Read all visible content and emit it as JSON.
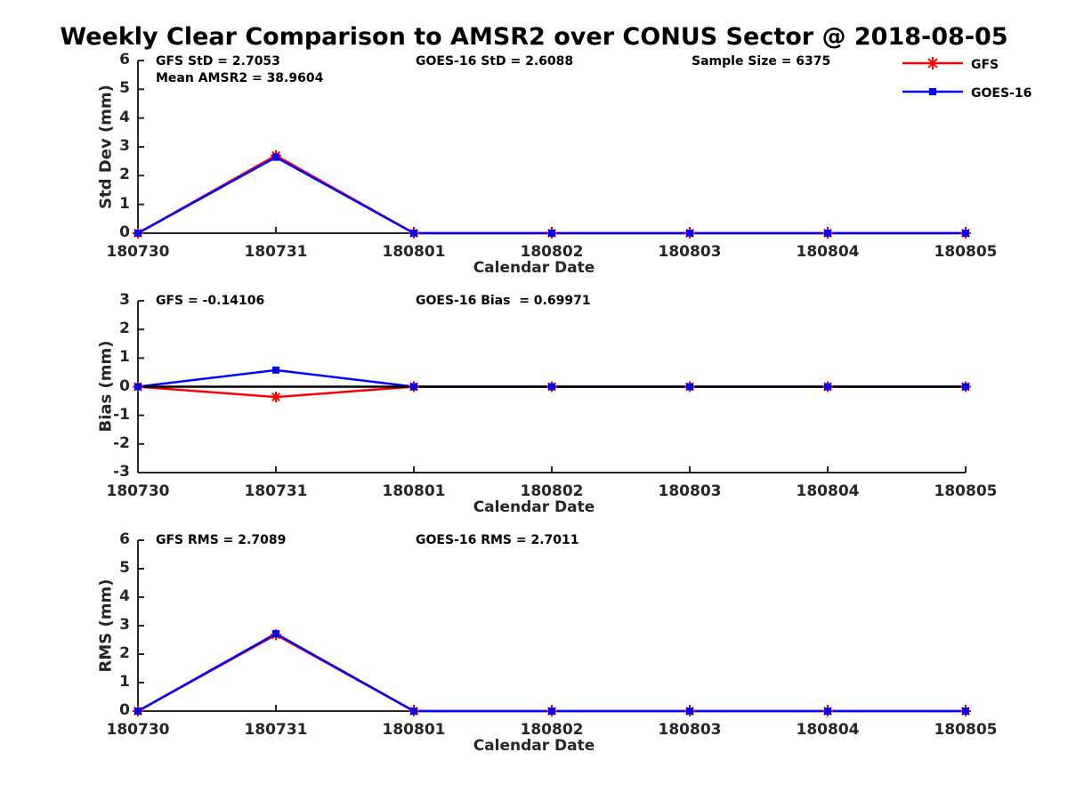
{
  "title": "Weekly Clear Comparison to AMSR2 over CONUS Sector @ 2018-08-05",
  "legend": {
    "items": [
      {
        "label": "GFS",
        "color": "#ff0000",
        "marker": "asterisk"
      },
      {
        "label": "GOES-16",
        "color": "#0000ff",
        "marker": "square"
      }
    ]
  },
  "colors": {
    "axis": "#262626",
    "gfs": "#ff0000",
    "goes16": "#0000ff",
    "zero_line": "#000000"
  },
  "chart_data": [
    {
      "type": "line",
      "ylabel": "Std Dev (mm)",
      "xlabel": "Calendar Date",
      "ylim": [
        0,
        6
      ],
      "yticks": [
        "0",
        "1",
        "2",
        "3",
        "4",
        "5",
        "6"
      ],
      "categories": [
        "180730",
        "180731",
        "180801",
        "180802",
        "180803",
        "180804",
        "180805"
      ],
      "grid": false,
      "legend_position": "top-right",
      "series": [
        {
          "name": "GFS",
          "color": "#ff0000",
          "marker": "asterisk",
          "values": [
            0,
            2.7,
            0,
            0,
            0,
            0,
            0
          ]
        },
        {
          "name": "GOES-16",
          "color": "#0000ff",
          "marker": "square",
          "values": [
            0,
            2.64,
            0,
            0,
            0,
            0,
            0
          ]
        }
      ],
      "annotations": {
        "left1": "GFS StD = 2.7053",
        "left2": "Mean AMSR2 = 38.9604",
        "center": "GOES-16 StD = 2.6088",
        "right": "Sample Size = 6375"
      }
    },
    {
      "type": "line",
      "ylabel": "Bias (mm)",
      "xlabel": "Calendar Date",
      "ylim": [
        -3,
        3
      ],
      "yticks": [
        "-3",
        "-2",
        "-1",
        "0",
        "1",
        "2",
        "3"
      ],
      "categories": [
        "180730",
        "180731",
        "180801",
        "180802",
        "180803",
        "180804",
        "180805"
      ],
      "grid": false,
      "zero_line": true,
      "series": [
        {
          "name": "GFS",
          "color": "#ff0000",
          "marker": "asterisk",
          "values": [
            0,
            -0.36,
            0,
            0,
            0,
            0,
            0
          ]
        },
        {
          "name": "GOES-16",
          "color": "#0000ff",
          "marker": "square",
          "values": [
            0,
            0.58,
            0,
            0,
            0,
            0,
            0
          ]
        }
      ],
      "annotations": {
        "left1": "GFS = -0.14106",
        "center": "GOES-16 Bias  = 0.69971"
      }
    },
    {
      "type": "line",
      "ylabel": "RMS (mm)",
      "xlabel": "Calendar Date",
      "ylim": [
        0,
        6
      ],
      "yticks": [
        "0",
        "1",
        "2",
        "3",
        "4",
        "5",
        "6"
      ],
      "categories": [
        "180730",
        "180731",
        "180801",
        "180802",
        "180803",
        "180804",
        "180805"
      ],
      "grid": false,
      "series": [
        {
          "name": "GFS",
          "color": "#ff0000",
          "marker": "asterisk",
          "values": [
            0,
            2.68,
            0,
            0,
            0,
            0,
            0
          ]
        },
        {
          "name": "GOES-16",
          "color": "#0000ff",
          "marker": "square",
          "values": [
            0,
            2.72,
            0,
            0,
            0,
            0,
            0
          ]
        }
      ],
      "annotations": {
        "left1": "GFS RMS = 2.7089",
        "center": "GOES-16 RMS = 2.7011"
      }
    }
  ]
}
